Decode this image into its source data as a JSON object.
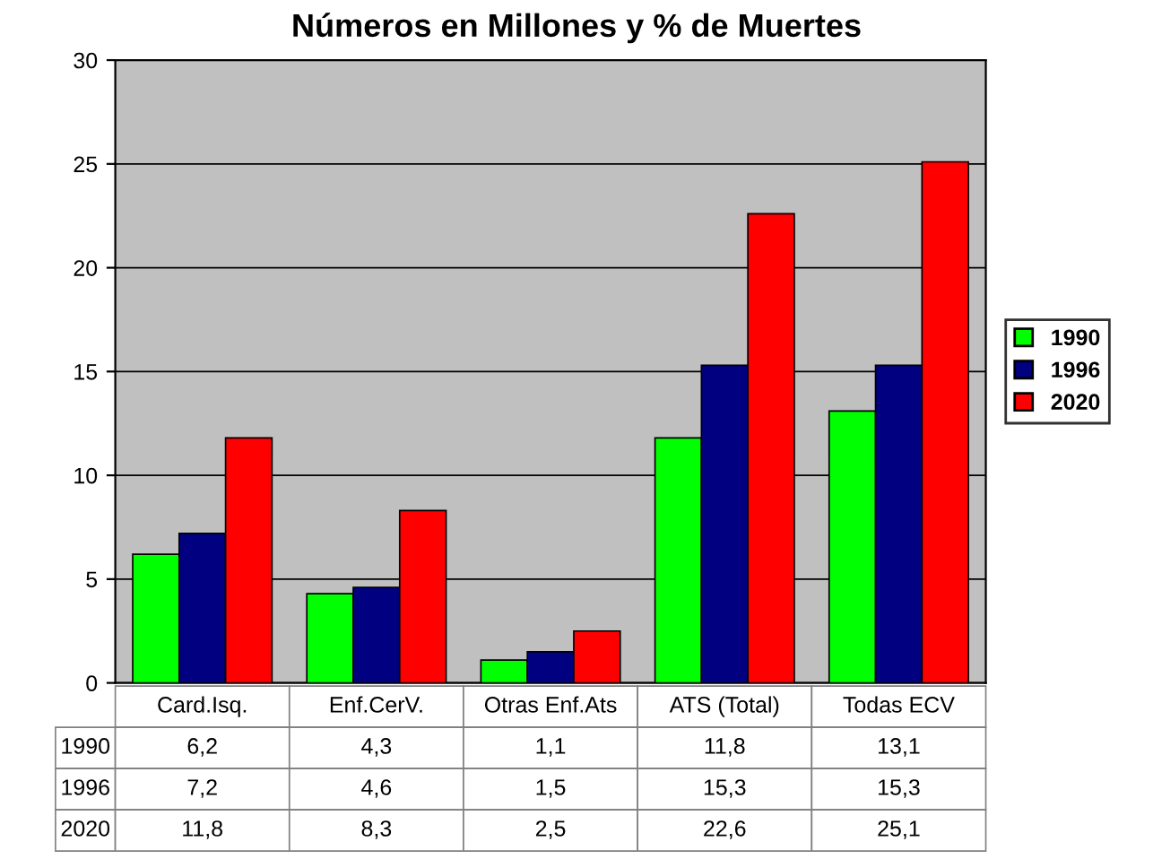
{
  "chart_data": {
    "type": "bar",
    "title": "Números en Millones y % de Muertes",
    "categories": [
      "Card.Isq.",
      "Enf.CerV.",
      "Otras Enf.Ats",
      "ATS (Total)",
      "Todas ECV"
    ],
    "series": [
      {
        "name": "1990",
        "color": "#00ff00",
        "values": [
          6.2,
          4.3,
          1.1,
          11.8,
          13.1
        ],
        "value_labels": [
          "6,2",
          "4,3",
          "1,1",
          "11,8",
          "13,1"
        ]
      },
      {
        "name": "1996",
        "color": "#000080",
        "values": [
          7.2,
          4.6,
          1.5,
          15.3,
          15.3
        ],
        "value_labels": [
          "7,2",
          "4,6",
          "1,5",
          "15,3",
          "15,3"
        ]
      },
      {
        "name": "2020",
        "color": "#ff0000",
        "values": [
          11.8,
          8.3,
          2.5,
          22.6,
          25.1
        ],
        "value_labels": [
          "11,8",
          "8,3",
          "2,5",
          "22,6",
          "25,1"
        ]
      }
    ],
    "ylim": [
      0,
      30
    ],
    "yticks": [
      0,
      5,
      10,
      15,
      20,
      25,
      30
    ],
    "grid": "y",
    "legend": "right"
  }
}
